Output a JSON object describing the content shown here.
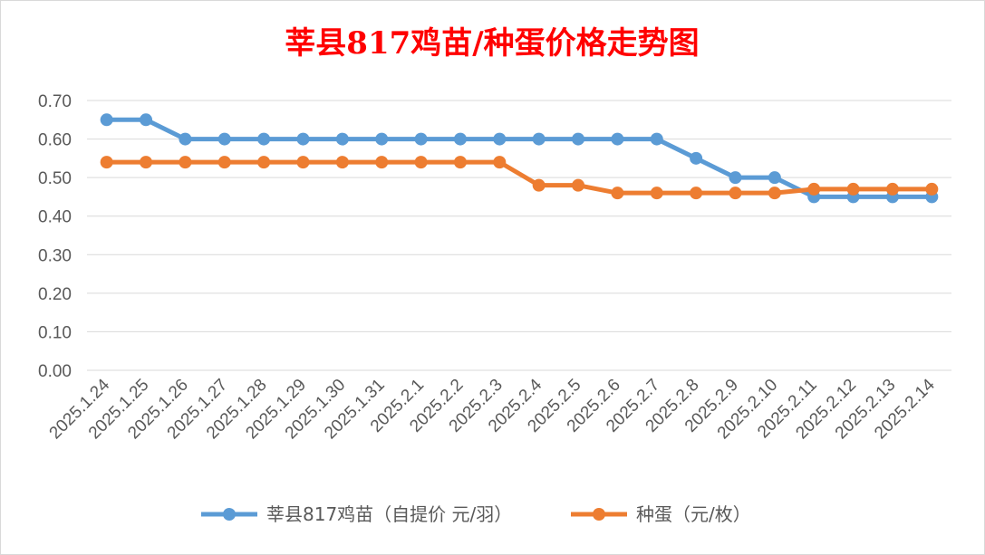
{
  "chart_data": {
    "type": "line",
    "title": "莘县817鸡苗/种蛋价格走势图",
    "title_color": "#ff0000",
    "categories": [
      "2025.1.24",
      "2025.1.25",
      "2025.1.26",
      "2025.1.27",
      "2025.1.28",
      "2025.1.29",
      "2025.1.30",
      "2025.1.31",
      "2025.2.1",
      "2025.2.2",
      "2025.2.3",
      "2025.2.4",
      "2025.2.5",
      "2025.2.6",
      "2025.2.7",
      "2025.2.8",
      "2025.2.9",
      "2025.2.10",
      "2025.2.11",
      "2025.2.12",
      "2025.2.13",
      "2025.2.14"
    ],
    "series": [
      {
        "name": "莘县817鸡苗（自提价 元/羽）",
        "color": "#5b9bd5",
        "values": [
          0.65,
          0.65,
          0.6,
          0.6,
          0.6,
          0.6,
          0.6,
          0.6,
          0.6,
          0.6,
          0.6,
          0.6,
          0.6,
          0.6,
          0.6,
          0.55,
          0.5,
          0.5,
          0.45,
          0.45,
          0.45,
          0.45
        ]
      },
      {
        "name": "种蛋（元/枚）",
        "color": "#ed7d31",
        "values": [
          0.54,
          0.54,
          0.54,
          0.54,
          0.54,
          0.54,
          0.54,
          0.54,
          0.54,
          0.54,
          0.54,
          0.48,
          0.48,
          0.46,
          0.46,
          0.46,
          0.46,
          0.46,
          0.47,
          0.47,
          0.47,
          0.47
        ]
      }
    ],
    "ylim": [
      0,
      0.7
    ],
    "y_ticks": [
      "0.00",
      "0.10",
      "0.20",
      "0.30",
      "0.40",
      "0.50",
      "0.60",
      "0.70"
    ],
    "grid": true,
    "legend_position": "bottom"
  }
}
